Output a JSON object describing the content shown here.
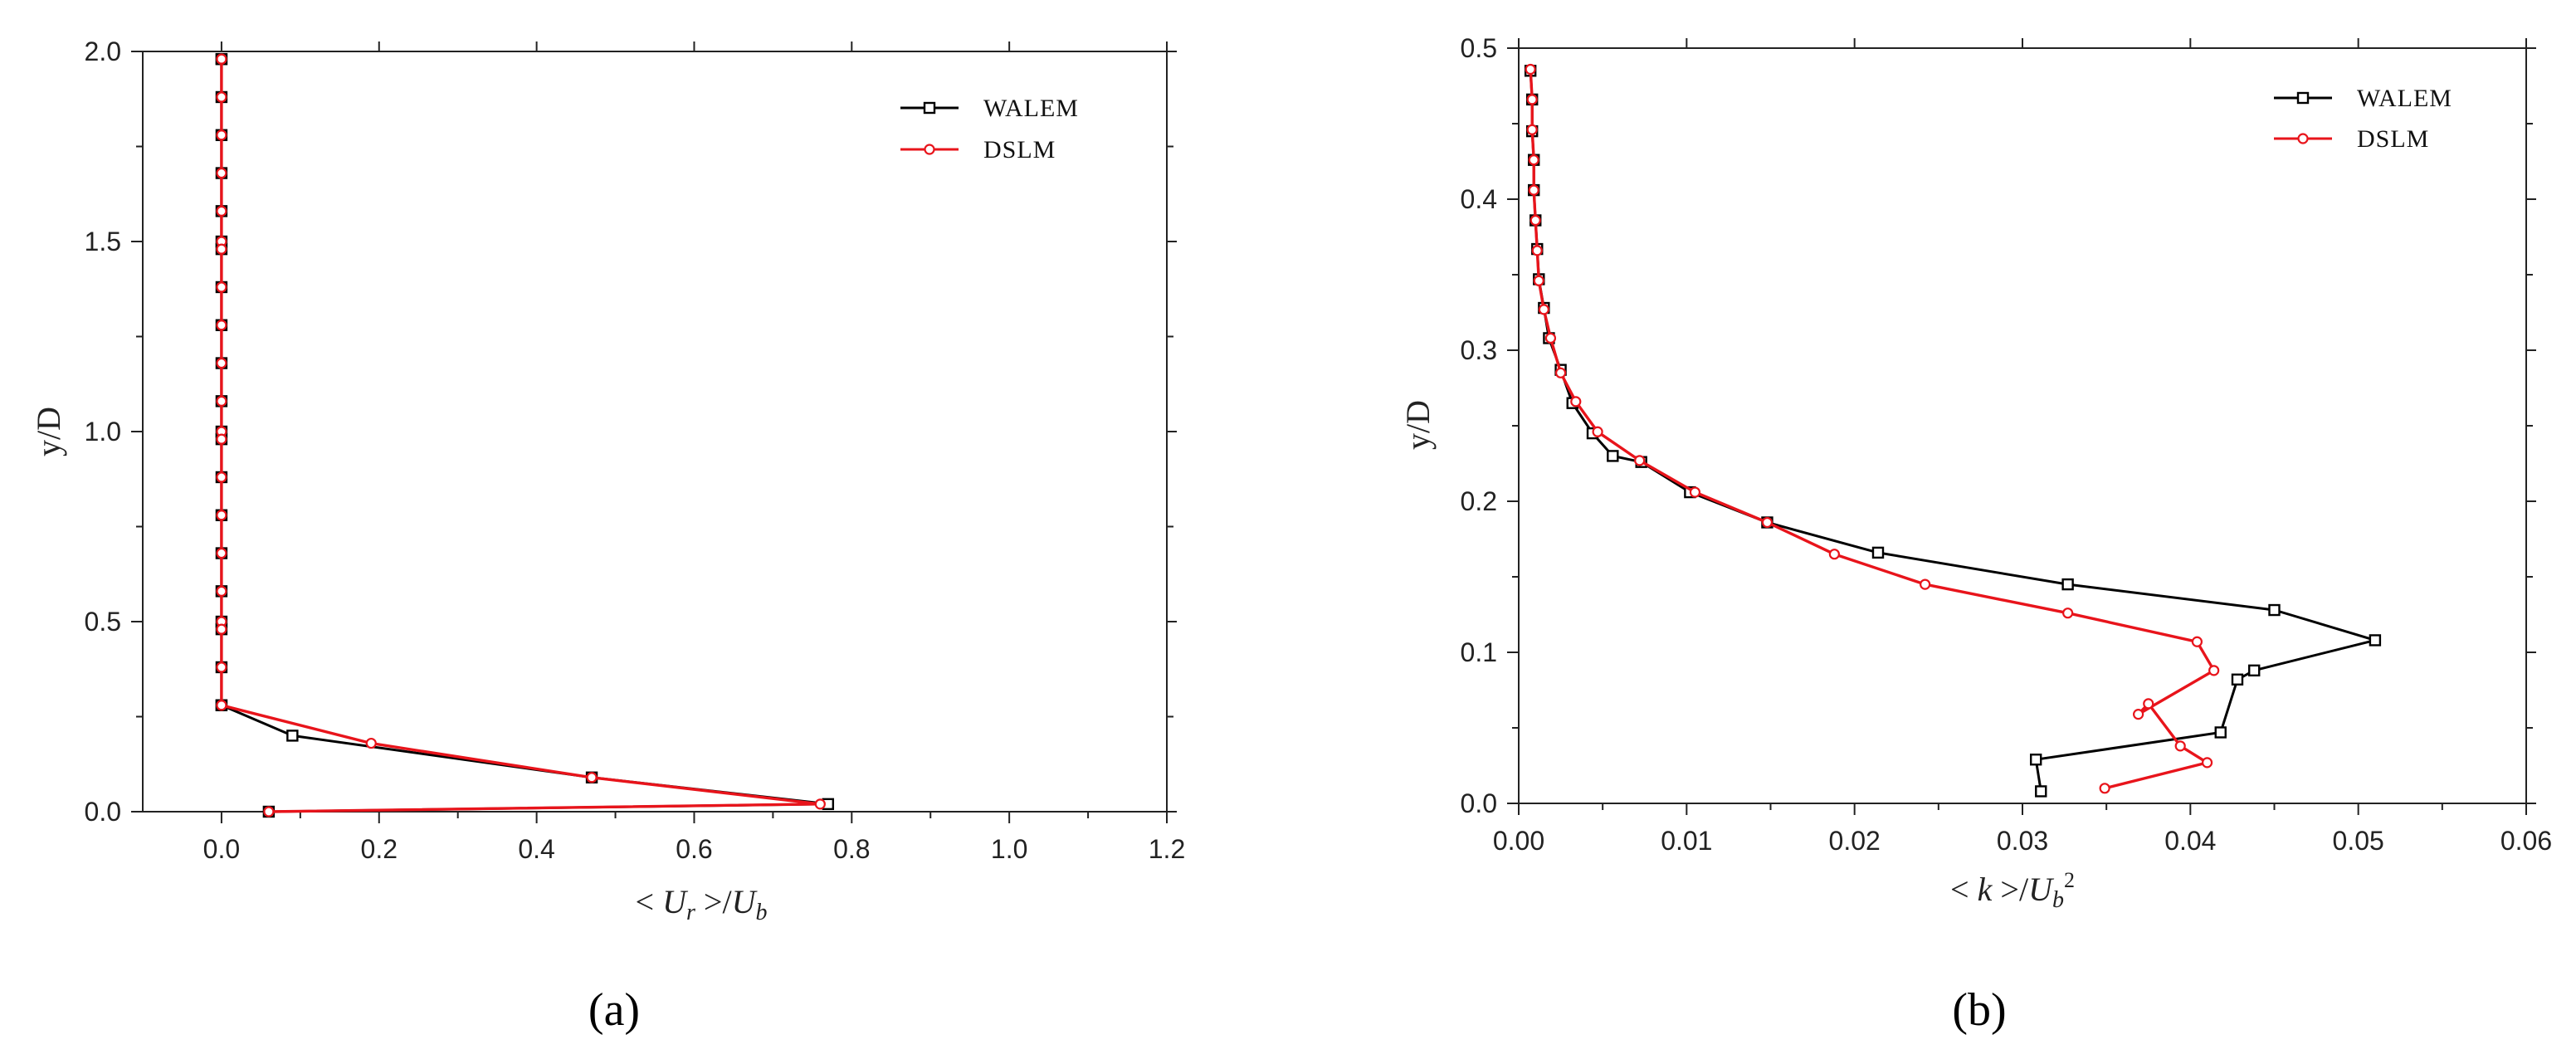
{
  "chart_data": [
    {
      "type": "line",
      "panel_label": "(a)",
      "xlabel": "< U_r >/U_b",
      "ylabel": "y/D",
      "xlim": [
        -0.1,
        1.2
      ],
      "ylim": [
        0.0,
        2.0
      ],
      "xticks": [
        0.0,
        0.2,
        0.4,
        0.6,
        0.8,
        1.0,
        1.2
      ],
      "xtick_labels": [
        "0.0",
        "0.2",
        "0.4",
        "0.6",
        "0.8",
        "1.0",
        "1.2"
      ],
      "yticks": [
        0.0,
        0.5,
        1.0,
        1.5,
        2.0
      ],
      "ytick_labels": [
        "0.0",
        "0.5",
        "1.0",
        "1.5",
        "2.0"
      ],
      "legend_position": "top-right",
      "series": [
        {
          "name": "WALEM",
          "color": "#000000",
          "marker": "square",
          "points": [
            [
              0.06,
              0.0
            ],
            [
              0.77,
              0.02
            ],
            [
              0.47,
              0.09
            ],
            [
              0.09,
              0.2
            ],
            [
              0.0,
              0.28
            ],
            [
              0.0,
              0.5
            ],
            [
              0.0,
              1.0
            ],
            [
              0.0,
              1.5
            ],
            [
              0.0,
              1.98
            ]
          ]
        },
        {
          "name": "DSLM",
          "color": "#e8141b",
          "marker": "circle",
          "points": [
            [
              0.06,
              0.0
            ],
            [
              0.76,
              0.02
            ],
            [
              0.47,
              0.09
            ],
            [
              0.19,
              0.18
            ],
            [
              0.0,
              0.28
            ],
            [
              0.0,
              0.5
            ],
            [
              0.0,
              1.0
            ],
            [
              0.0,
              1.5
            ],
            [
              0.0,
              1.98
            ]
          ]
        }
      ],
      "vertical_markers_y": [
        0.28,
        0.38,
        0.48,
        0.58,
        0.68,
        0.78,
        0.88,
        0.98,
        1.08,
        1.18,
        1.28,
        1.38,
        1.48,
        1.58,
        1.68,
        1.78,
        1.88,
        1.98
      ]
    },
    {
      "type": "line",
      "panel_label": "(b)",
      "xlabel": "< k >/U_b^2",
      "ylabel": "y/D",
      "xlim": [
        0.0,
        0.06
      ],
      "ylim": [
        0.0,
        0.5
      ],
      "xticks": [
        0.0,
        0.01,
        0.02,
        0.03,
        0.04,
        0.05,
        0.06
      ],
      "xtick_labels": [
        "0.00",
        "0.01",
        "0.02",
        "0.03",
        "0.04",
        "0.05",
        "0.06"
      ],
      "yticks": [
        0.0,
        0.1,
        0.2,
        0.3,
        0.4,
        0.5
      ],
      "ytick_labels": [
        "0.0",
        "0.1",
        "0.2",
        "0.3",
        "0.4",
        "0.5"
      ],
      "legend_position": "top-right",
      "series": [
        {
          "name": "WALEM",
          "color": "#000000",
          "marker": "square",
          "points": [
            [
              0.0311,
              0.008
            ],
            [
              0.0308,
              0.029
            ],
            [
              0.0418,
              0.047
            ],
            [
              0.0428,
              0.082
            ],
            [
              0.0438,
              0.088
            ],
            [
              0.051,
              0.108
            ],
            [
              0.045,
              0.128
            ],
            [
              0.0327,
              0.145
            ],
            [
              0.0214,
              0.166
            ],
            [
              0.0148,
              0.186
            ],
            [
              0.0102,
              0.206
            ],
            [
              0.0073,
              0.226
            ],
            [
              0.0056,
              0.23
            ],
            [
              0.0044,
              0.245
            ],
            [
              0.0032,
              0.265
            ],
            [
              0.0025,
              0.287
            ],
            [
              0.0018,
              0.308
            ],
            [
              0.0015,
              0.328
            ],
            [
              0.0012,
              0.347
            ],
            [
              0.0011,
              0.367
            ],
            [
              0.001,
              0.386
            ],
            [
              0.0009,
              0.406
            ],
            [
              0.0009,
              0.426
            ],
            [
              0.0008,
              0.445
            ],
            [
              0.0008,
              0.466
            ],
            [
              0.0007,
              0.485
            ]
          ]
        },
        {
          "name": "DSLM",
          "color": "#e8141b",
          "marker": "circle",
          "points": [
            [
              0.0349,
              0.01
            ],
            [
              0.041,
              0.027
            ],
            [
              0.0394,
              0.038
            ],
            [
              0.0375,
              0.066
            ],
            [
              0.0369,
              0.059
            ],
            [
              0.0414,
              0.088
            ],
            [
              0.0404,
              0.107
            ],
            [
              0.0327,
              0.126
            ],
            [
              0.0242,
              0.145
            ],
            [
              0.0188,
              0.165
            ],
            [
              0.0148,
              0.186
            ],
            [
              0.0105,
              0.206
            ],
            [
              0.0072,
              0.227
            ],
            [
              0.0047,
              0.246
            ],
            [
              0.0034,
              0.266
            ],
            [
              0.0025,
              0.285
            ],
            [
              0.0019,
              0.308
            ],
            [
              0.0015,
              0.327
            ],
            [
              0.0012,
              0.346
            ],
            [
              0.0011,
              0.366
            ],
            [
              0.001,
              0.386
            ],
            [
              0.0009,
              0.406
            ],
            [
              0.0009,
              0.426
            ],
            [
              0.0008,
              0.446
            ],
            [
              0.0008,
              0.466
            ],
            [
              0.0007,
              0.486
            ]
          ]
        }
      ]
    }
  ]
}
